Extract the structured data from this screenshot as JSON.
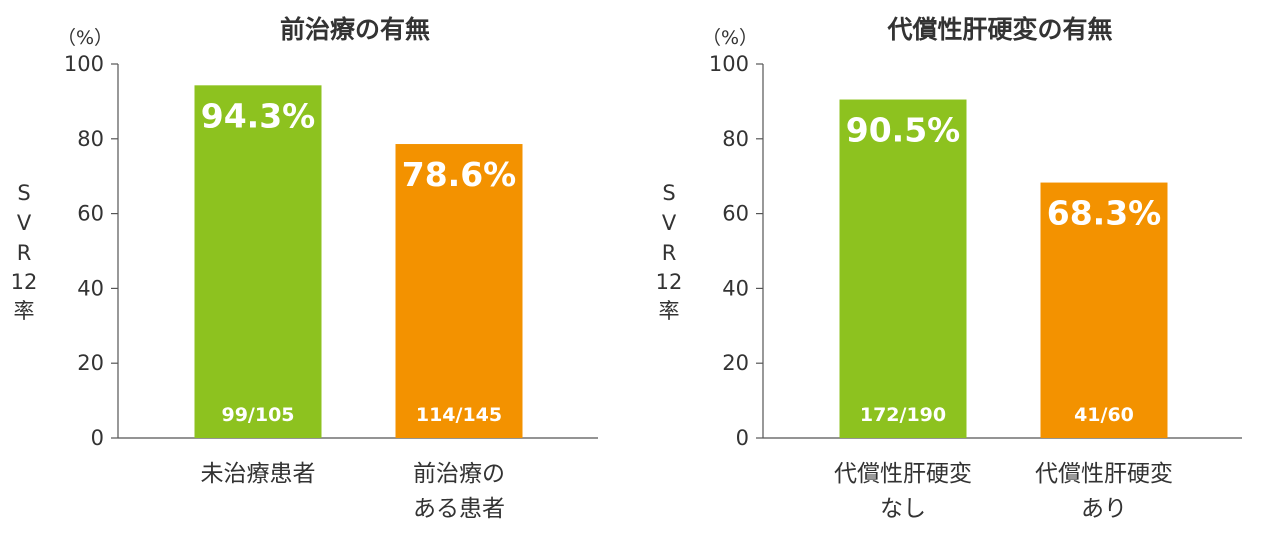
{
  "chart_data": [
    {
      "type": "bar",
      "title": "前治療の有無",
      "unit_label": "（%）",
      "ylabel": [
        "S",
        "V",
        "R",
        "12",
        "率"
      ],
      "ylim": [
        0,
        100
      ],
      "yticks": [
        0,
        20,
        40,
        60,
        80,
        100
      ],
      "categories": [
        [
          "未治療患者"
        ],
        [
          "前治療の",
          "ある患者"
        ]
      ],
      "values": [
        94.3,
        78.6
      ],
      "value_labels": [
        "94.3%",
        "78.6%"
      ],
      "count_labels": [
        "99/105",
        "114/145"
      ],
      "colors": [
        "#8dc21f",
        "#f39200"
      ],
      "grid": false
    },
    {
      "type": "bar",
      "title": "代償性肝硬変の有無",
      "unit_label": "（%）",
      "ylabel": [
        "S",
        "V",
        "R",
        "12",
        "率"
      ],
      "ylim": [
        0,
        100
      ],
      "yticks": [
        0,
        20,
        40,
        60,
        80,
        100
      ],
      "categories": [
        [
          "代償性肝硬変",
          "なし"
        ],
        [
          "代償性肝硬変",
          "あり"
        ]
      ],
      "values": [
        90.5,
        68.3
      ],
      "value_labels": [
        "90.5%",
        "68.3%"
      ],
      "count_labels": [
        "172/190",
        "41/60"
      ],
      "colors": [
        "#8dc21f",
        "#f39200"
      ],
      "grid": false
    }
  ]
}
